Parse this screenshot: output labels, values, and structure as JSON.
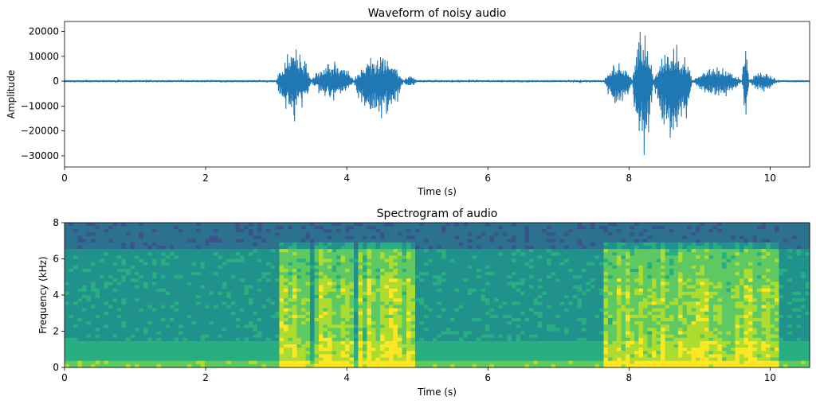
{
  "chart_data": [
    {
      "type": "line",
      "title": "Waveform of noisy audio",
      "xlabel": "Time (s)",
      "ylabel": "Amplitude",
      "xlim": [
        0,
        10.56
      ],
      "ylim": [
        -34500,
        24000
      ],
      "x_ticks": [
        0,
        2,
        4,
        6,
        8,
        10
      ],
      "y_ticks": [
        -30000,
        -20000,
        -10000,
        0,
        10000,
        20000
      ],
      "x_tick_labels": [
        "0",
        "2",
        "4",
        "6",
        "8",
        "10"
      ],
      "y_tick_labels": [
        "−30000",
        "−20000",
        "−10000",
        "0",
        "10000",
        "20000"
      ],
      "color": "#1f77b4",
      "grid": false,
      "noise_floor": 400,
      "bursts": [
        {
          "t0": 3.0,
          "t1": 3.5,
          "max": 13800,
          "min": -16500
        },
        {
          "t0": 3.5,
          "t1": 4.1,
          "max": 9000,
          "min": -9500
        },
        {
          "t0": 4.1,
          "t1": 4.8,
          "max": 11500,
          "min": -19500
        },
        {
          "t0": 4.8,
          "t1": 5.0,
          "max": 2500,
          "min": -3000
        },
        {
          "t0": 7.65,
          "t1": 8.05,
          "max": 8300,
          "min": -12000
        },
        {
          "t0": 8.05,
          "t1": 8.35,
          "max": 23000,
          "min": -33000
        },
        {
          "t0": 8.35,
          "t1": 8.9,
          "max": 16200,
          "min": -30000
        },
        {
          "t0": 8.9,
          "t1": 9.6,
          "max": 6200,
          "min": -7500
        },
        {
          "t0": 9.6,
          "t1": 9.7,
          "max": 14500,
          "min": -16000
        },
        {
          "t0": 9.7,
          "t1": 10.1,
          "max": 4200,
          "min": -5000
        }
      ]
    },
    {
      "type": "heatmap",
      "title": "Spectrogram of audio",
      "xlabel": "Time (s)",
      "ylabel": "Frequency (kHz)",
      "xlim": [
        0,
        10.56
      ],
      "ylim": [
        0,
        8
      ],
      "x_ticks": [
        0,
        2,
        4,
        6,
        8,
        10
      ],
      "y_ticks": [
        0,
        2,
        4,
        6,
        8
      ],
      "x_tick_labels": [
        "0",
        "2",
        "4",
        "6",
        "8",
        "10"
      ],
      "y_tick_labels": [
        "0",
        "2",
        "4",
        "6",
        "8"
      ],
      "colormap": "viridis",
      "colors": [
        "#3b528b",
        "#2c728e",
        "#21918c",
        "#28ae80",
        "#5ec962",
        "#addc30",
        "#fde725"
      ],
      "speech_segments_s": [
        [
          3.05,
          3.5
        ],
        [
          3.55,
          4.1
        ],
        [
          4.15,
          4.8
        ],
        [
          4.8,
          5.0
        ],
        [
          7.65,
          8.1
        ],
        [
          8.1,
          8.4
        ],
        [
          8.4,
          8.9
        ],
        [
          8.9,
          9.6
        ],
        [
          9.6,
          9.75
        ],
        [
          9.75,
          10.1
        ]
      ]
    }
  ]
}
